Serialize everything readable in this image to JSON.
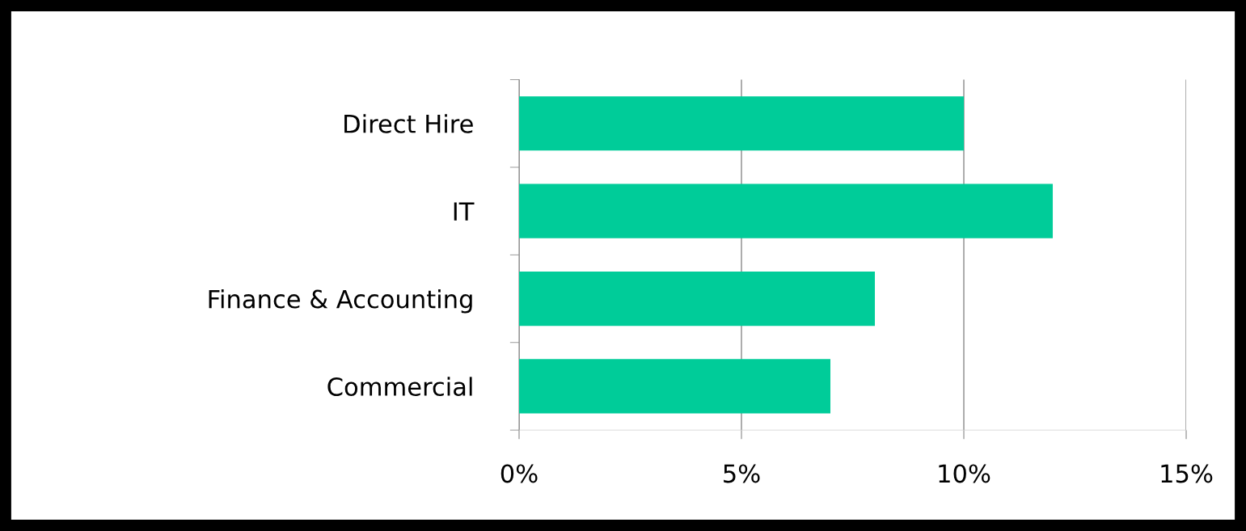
{
  "chart_data": {
    "type": "bar",
    "orientation": "horizontal",
    "categories": [
      "Direct Hire",
      "IT",
      "Finance & Accounting",
      "Commercial"
    ],
    "values": [
      10,
      12,
      8,
      7
    ],
    "color": "#00cc99",
    "xlim": [
      0,
      15
    ],
    "xticks": [
      {
        "value": 0,
        "label": "0%"
      },
      {
        "value": 5,
        "label": "5%"
      },
      {
        "value": 10,
        "label": "10%"
      },
      {
        "value": 15,
        "label": "15%"
      }
    ],
    "grid": "x",
    "legend": false
  }
}
